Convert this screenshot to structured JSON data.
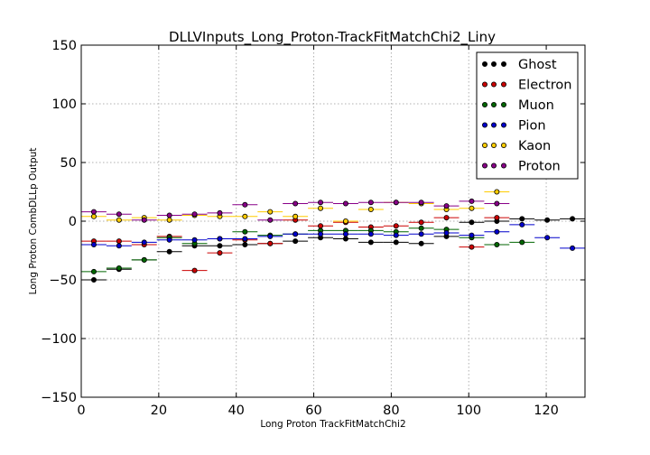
{
  "chart_data": {
    "type": "scatter",
    "title": "DLLVInputs_Long_Proton-TrackFitMatchChi2_Liny",
    "xlabel": "Long Proton TrackFitMatchChi2",
    "ylabel": "Long Proton CombDLLp Output",
    "xlim": [
      0,
      130
    ],
    "ylim": [
      -150,
      150
    ],
    "xticks": [
      0,
      20,
      40,
      60,
      80,
      100,
      120
    ],
    "yticks": [
      -150,
      -100,
      -50,
      0,
      50,
      100,
      150
    ],
    "grid": true,
    "legend_position": "top-right",
    "bin_width": 6.5,
    "series": [
      {
        "name": "Ghost",
        "color": "#000000",
        "x": [
          3.25,
          9.75,
          16.25,
          22.75,
          29.25,
          35.75,
          42.25,
          48.75,
          55.25,
          61.75,
          68.25,
          74.75,
          81.25,
          87.75,
          94.25,
          100.75,
          107.25,
          113.75,
          120.25,
          126.75
        ],
        "y": [
          -50,
          -41,
          -33,
          -26,
          -21,
          -21,
          -20,
          -19,
          -17,
          -14,
          -15,
          -18,
          -18,
          -19,
          -13,
          -1,
          0,
          2,
          1,
          2
        ]
      },
      {
        "name": "Electron",
        "color": "#cc0000",
        "x": [
          3.25,
          9.75,
          16.25,
          22.75,
          29.25,
          35.75,
          42.25,
          48.75,
          55.25,
          61.75,
          68.25,
          74.75,
          81.25,
          87.75,
          94.25,
          100.75,
          107.25
        ],
        "y": [
          -17,
          -17,
          -20,
          -13,
          -42,
          -27,
          -16,
          -19,
          1,
          -4,
          -1,
          -5,
          -4,
          -1,
          3,
          -22,
          3
        ]
      },
      {
        "name": "Muon",
        "color": "#006600",
        "x": [
          3.25,
          9.75,
          16.25,
          22.75,
          29.25,
          35.75,
          42.25,
          48.75,
          55.25,
          61.75,
          68.25,
          74.75,
          81.25,
          87.75,
          94.25,
          100.75,
          107.25,
          113.75
        ],
        "y": [
          -43,
          -40,
          -33,
          -14,
          -19,
          -15,
          -9,
          -12,
          -11,
          -8,
          -8,
          -8,
          -9,
          -6,
          -7,
          -14,
          -20,
          -18
        ]
      },
      {
        "name": "Pion",
        "color": "#0000cc",
        "x": [
          3.25,
          9.75,
          16.25,
          22.75,
          29.25,
          35.75,
          42.25,
          48.75,
          55.25,
          61.75,
          68.25,
          74.75,
          81.25,
          87.75,
          94.25,
          100.75,
          107.25,
          113.75,
          120.25,
          126.75
        ],
        "y": [
          -20,
          -21,
          -18,
          -16,
          -16,
          -15,
          -15,
          -13,
          -11,
          -11,
          -11,
          -11,
          -12,
          -11,
          -10,
          -12,
          -9,
          -3,
          -14,
          -23
        ]
      },
      {
        "name": "Kaon",
        "color": "#ffcc00",
        "x": [
          3.25,
          9.75,
          16.25,
          22.75,
          29.25,
          35.75,
          42.25,
          48.75,
          55.25,
          61.75,
          68.25,
          74.75,
          81.25,
          87.75,
          94.25,
          100.75,
          107.25
        ],
        "y": [
          4,
          1,
          3,
          1,
          5,
          4,
          4,
          8,
          4,
          11,
          0,
          10,
          16,
          15,
          10,
          11,
          25
        ]
      },
      {
        "name": "Proton",
        "color": "#880088",
        "x": [
          3.25,
          9.75,
          16.25,
          22.75,
          29.25,
          35.75,
          42.25,
          48.75,
          55.25,
          61.75,
          68.25,
          74.75,
          81.25,
          87.75,
          94.25,
          100.75,
          107.25
        ],
        "y": [
          8,
          6,
          1,
          5,
          6,
          7,
          14,
          1,
          15,
          16,
          15,
          16,
          16,
          16,
          13,
          17,
          15
        ]
      }
    ]
  }
}
